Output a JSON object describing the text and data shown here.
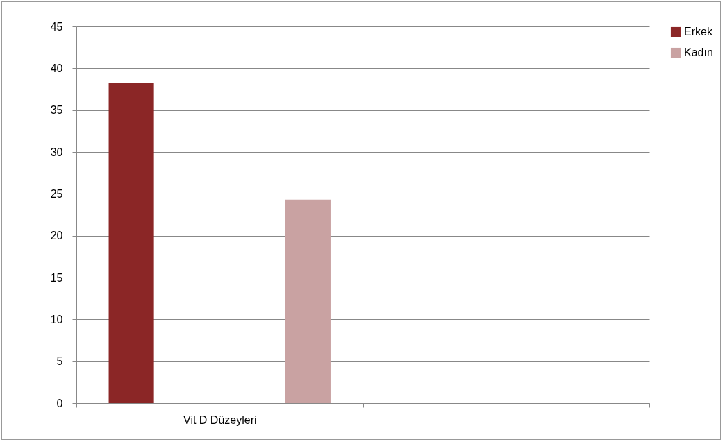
{
  "chart_data": {
    "type": "bar",
    "categories": [
      "Vit D Düzeyleri",
      null
    ],
    "series": [
      {
        "name": "Erkek",
        "color": "#8b2626",
        "values": [
          38.2,
          null
        ]
      },
      {
        "name": "Kadın",
        "color": "#c9a2a2",
        "values": [
          24.3,
          null
        ]
      }
    ],
    "ylim": [
      0,
      45
    ],
    "yticks": [
      0,
      5,
      10,
      15,
      20,
      25,
      30,
      35,
      40,
      45
    ],
    "grid": "y",
    "legend": "right"
  }
}
